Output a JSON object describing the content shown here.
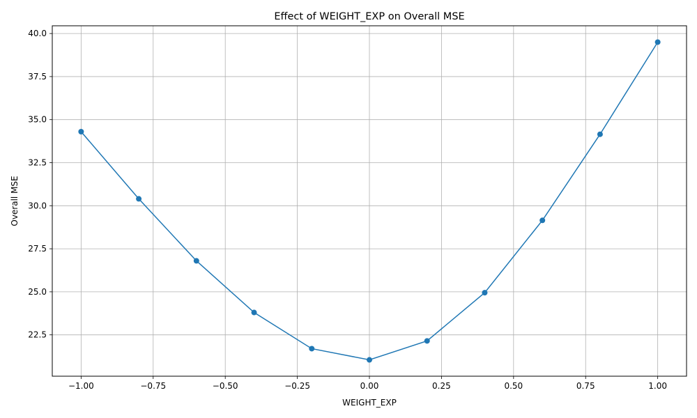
{
  "chart_data": {
    "type": "line",
    "title": "Effect of WEIGHT_EXP on Overall MSE",
    "xlabel": "WEIGHT_EXP",
    "ylabel": "Overall MSE",
    "x": [
      -1.0,
      -0.8,
      -0.6,
      -0.4,
      -0.2,
      0.0,
      0.2,
      0.4,
      0.6,
      0.8,
      1.0
    ],
    "series": [
      {
        "values": [
          34.3,
          30.4,
          26.8,
          23.8,
          21.7,
          21.05,
          22.15,
          24.95,
          29.15,
          34.15,
          39.5
        ],
        "color": "#1f77b4",
        "marker": "circle"
      }
    ],
    "xlim": [
      -1.1,
      1.1
    ],
    "ylim": [
      20.1,
      40.45
    ],
    "xticks": [
      -1.0,
      -0.75,
      -0.5,
      -0.25,
      0.0,
      0.25,
      0.5,
      0.75,
      1.0
    ],
    "xtick_labels": [
      "−1.00",
      "−0.75",
      "−0.50",
      "−0.25",
      "0.00",
      "0.25",
      "0.50",
      "0.75",
      "1.00"
    ],
    "yticks": [
      22.5,
      25.0,
      27.5,
      30.0,
      32.5,
      35.0,
      37.5,
      40.0
    ],
    "ytick_labels": [
      "22.5",
      "25.0",
      "27.5",
      "30.0",
      "32.5",
      "35.0",
      "37.5",
      "40.0"
    ],
    "grid": true,
    "grid_color": "#b0b0b0"
  }
}
